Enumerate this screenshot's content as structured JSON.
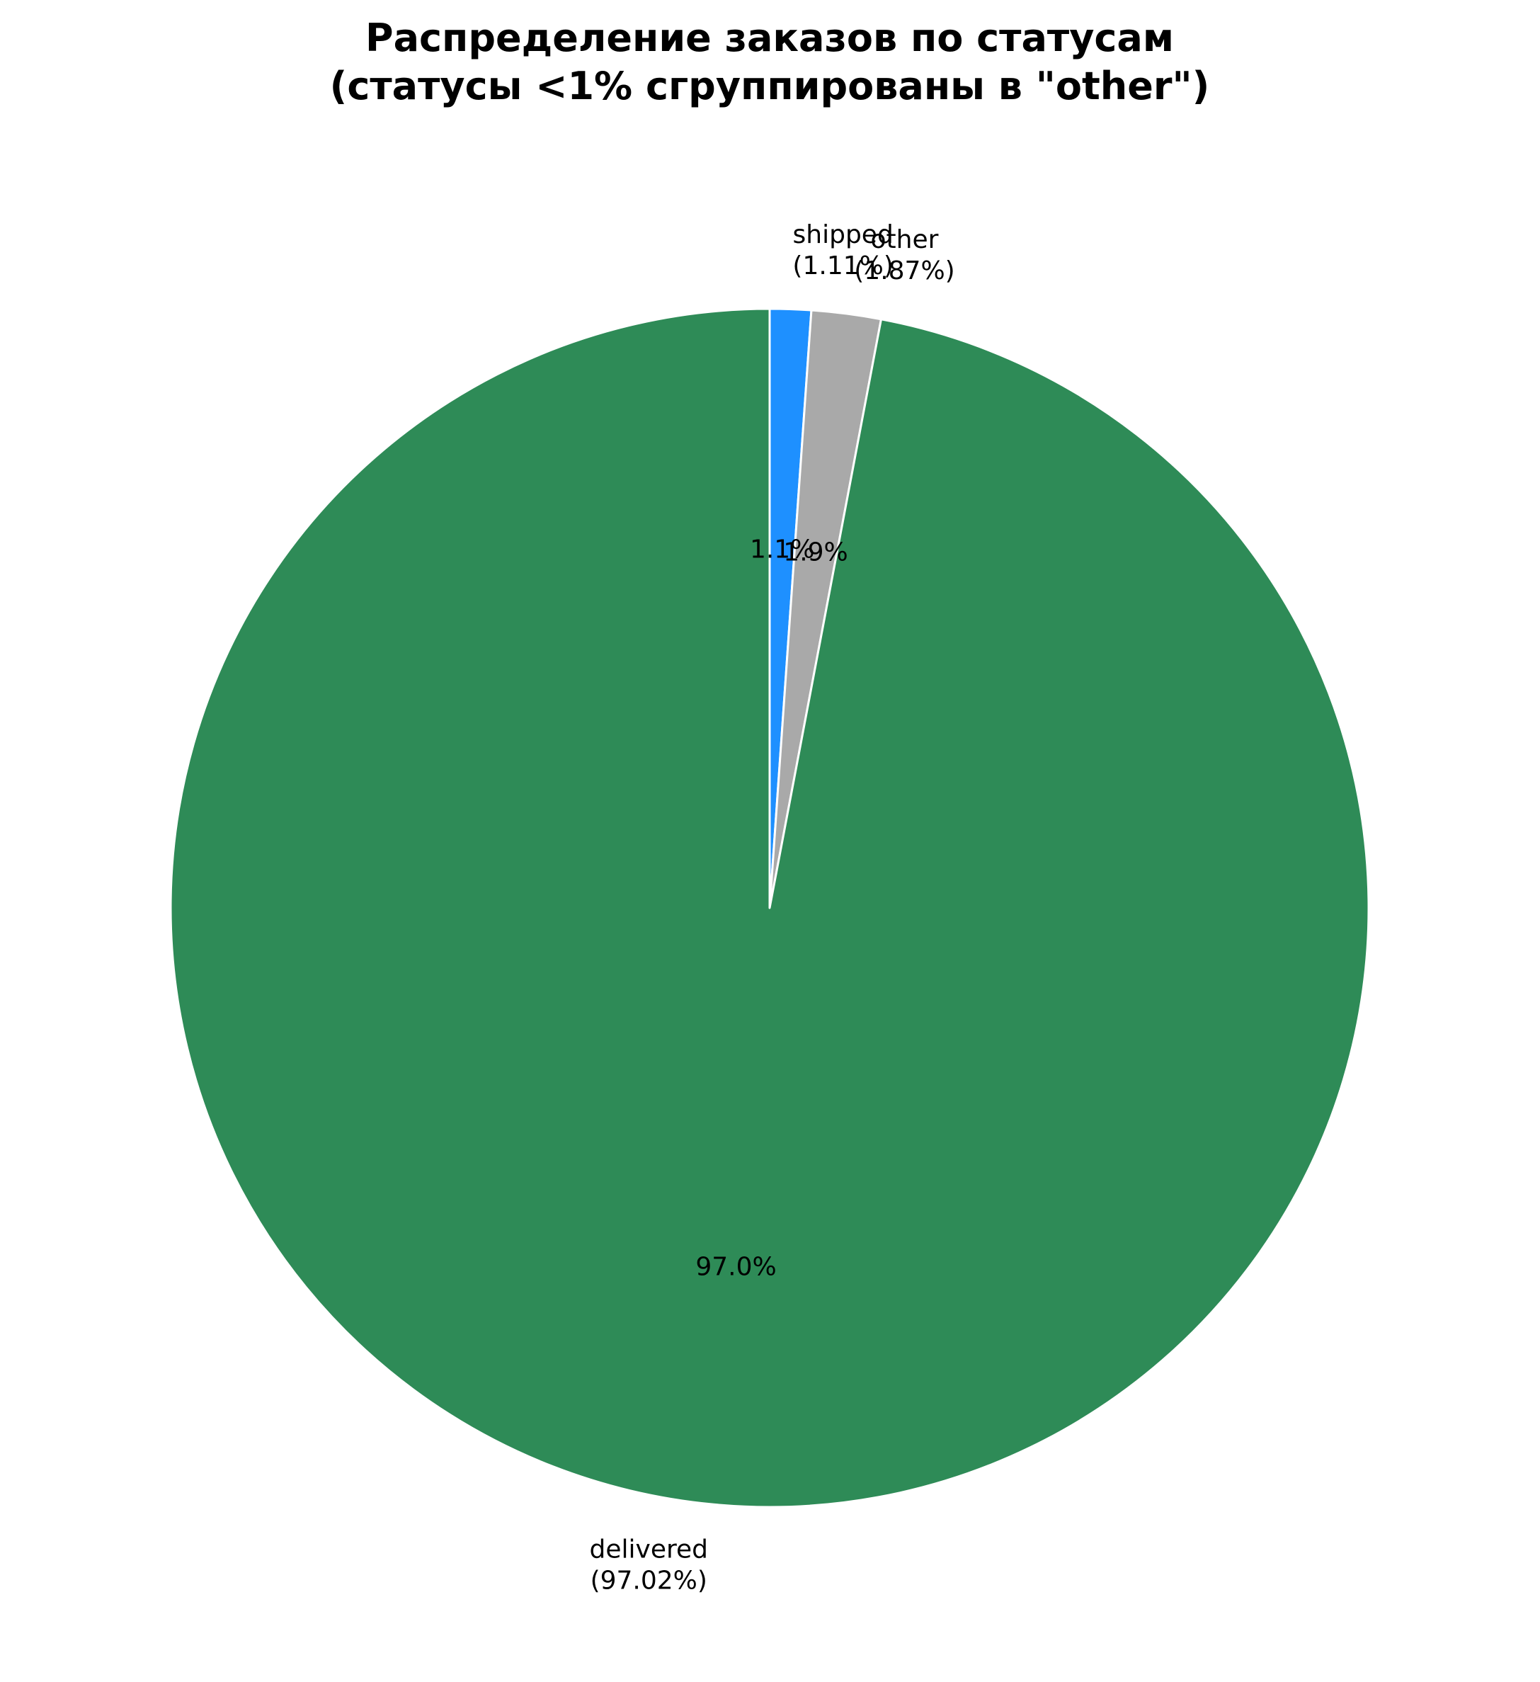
{
  "chart_data": {
    "type": "pie",
    "title": "Распределение заказов по статусам\n(статусы <1% сгруппированы в \"other\")",
    "title_lines": [
      "Распределение заказов по статусам",
      "(статусы <1% сгруппированы в \"other\")"
    ],
    "start": "top",
    "direction": "clockwise",
    "slices": [
      {
        "name": "shipped",
        "value": 1.11,
        "color": "#1e90ff",
        "label_lines": [
          "shipped",
          "(1.11%)"
        ],
        "pct_label": "1.1%"
      },
      {
        "name": "other",
        "value": 1.87,
        "color": "#a9a9a9",
        "label_lines": [
          "other",
          "(1.87%)"
        ],
        "pct_label": "1.9%"
      },
      {
        "name": "delivered",
        "value": 97.02,
        "color": "#2e8b57",
        "label_lines": [
          "delivered",
          "(97.02%)"
        ],
        "pct_label": "97.0%"
      }
    ],
    "edge_color": "#ffffff"
  }
}
